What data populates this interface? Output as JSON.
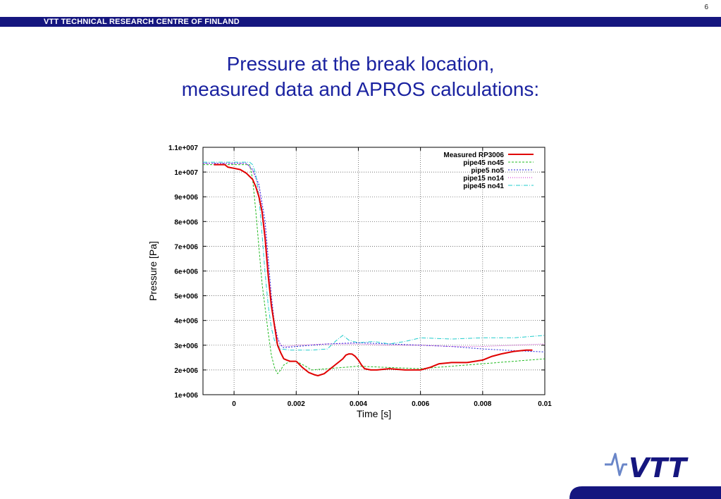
{
  "header": {
    "page_number": "6",
    "organization": "VTT TECHNICAL RESEARCH CENTRE OF FINLAND"
  },
  "slide": {
    "title_line1": "Pressure at the break location,",
    "title_line2": "measured data and APROS calculations:"
  },
  "logo": {
    "text": "VTT"
  },
  "colors": {
    "brand_blue": "#15167f",
    "title_blue": "#1a22a0"
  },
  "chart_data": {
    "type": "line",
    "xlabel": "Time [s]",
    "ylabel": "Pressure [Pa]",
    "xlim": [
      -0.001,
      0.01
    ],
    "ylim": [
      1000000,
      11000000
    ],
    "grid": true,
    "legend_position": "top-right",
    "x_ticks": [
      0,
      0.002,
      0.004,
      0.006,
      0.008,
      0.01
    ],
    "x_tick_labels": [
      "0",
      "0.002",
      "0.004",
      "0.006",
      "0.008",
      "0.01"
    ],
    "y_ticks": [
      1000000,
      2000000,
      3000000,
      4000000,
      5000000,
      6000000,
      7000000,
      8000000,
      9000000,
      10000000,
      11000000
    ],
    "y_tick_labels": [
      "1e+006",
      "2e+006",
      "3e+006",
      "4e+006",
      "5e+006",
      "6e+006",
      "7e+006",
      "8e+006",
      "9e+006",
      "1e+007",
      "1.1e+007"
    ],
    "series": [
      {
        "name": "Measured RP3006",
        "color": "#e00000",
        "dash": "solid",
        "width": 2,
        "x": [
          -0.00065,
          -0.00063,
          -0.0003,
          -0.0002,
          0.0,
          0.0002,
          0.0004,
          0.0006,
          0.0007,
          0.0008,
          0.0009,
          0.001,
          0.0011,
          0.0012,
          0.0013,
          0.0014,
          0.0015,
          0.0016,
          0.0017,
          0.0018,
          0.002,
          0.0022,
          0.0024,
          0.0026,
          0.0027,
          0.0029,
          0.0031,
          0.0033,
          0.0035,
          0.0036,
          0.0037,
          0.0038,
          0.0039,
          0.004,
          0.0041,
          0.0042,
          0.0044,
          0.0046,
          0.005,
          0.0055,
          0.006,
          0.0063,
          0.0066,
          0.007,
          0.0075,
          0.008,
          0.0083,
          0.0086,
          0.009,
          0.0094,
          0.0096
        ],
        "y": [
          10300000,
          10300000,
          10300000,
          10200000,
          10150000,
          10100000,
          9950000,
          9700000,
          9400000,
          9000000,
          8400000,
          7300000,
          5800000,
          4600000,
          3800000,
          3000000,
          2700000,
          2450000,
          2400000,
          2350000,
          2350000,
          2100000,
          1900000,
          1800000,
          1770000,
          1850000,
          2050000,
          2250000,
          2450000,
          2600000,
          2650000,
          2640000,
          2550000,
          2400000,
          2200000,
          2050000,
          2000000,
          2000000,
          2050000,
          2000000,
          2000000,
          2100000,
          2250000,
          2300000,
          2300000,
          2400000,
          2550000,
          2650000,
          2750000,
          2800000,
          2800000
        ]
      },
      {
        "name": "pipe45 no45",
        "color": "#22bb22",
        "dash": "3,2",
        "width": 1,
        "x": [
          -0.001,
          0.0005,
          0.0006,
          0.0007,
          0.0009,
          0.0011,
          0.0012,
          0.0013,
          0.0014,
          0.0015,
          0.0016,
          0.0018,
          0.002,
          0.0023,
          0.0025,
          0.003,
          0.0035,
          0.004,
          0.005,
          0.006,
          0.007,
          0.008,
          0.009,
          0.01
        ],
        "y": [
          10300000,
          10300000,
          9700000,
          8400000,
          5500000,
          3500000,
          2600000,
          2100000,
          1850000,
          2000000,
          2200000,
          2350000,
          2350000,
          2150000,
          2000000,
          2050000,
          2100000,
          2150000,
          2100000,
          2050000,
          2150000,
          2250000,
          2350000,
          2450000
        ]
      },
      {
        "name": "pipe5 no5",
        "color": "#2222dd",
        "dash": "2,2",
        "width": 1,
        "x": [
          -0.001,
          0.0004,
          0.0006,
          0.0008,
          0.001,
          0.0011,
          0.0012,
          0.0013,
          0.0014,
          0.0015,
          0.0016,
          0.002,
          0.003,
          0.004,
          0.005,
          0.006,
          0.007,
          0.008,
          0.009,
          0.01
        ],
        "y": [
          10350000,
          10350000,
          10100000,
          9500000,
          8000000,
          6500000,
          5000000,
          3900000,
          3300000,
          3000000,
          2900000,
          2950000,
          3050000,
          3100000,
          3050000,
          3000000,
          2950000,
          2850000,
          2780000,
          2730000
        ]
      },
      {
        "name": "pipe15 no14",
        "color": "#cc22cc",
        "dash": "1,2",
        "width": 1,
        "x": [
          -0.001,
          0.0004,
          0.0006,
          0.0008,
          0.001,
          0.0011,
          0.0012,
          0.0013,
          0.0014,
          0.0015,
          0.0017,
          0.002,
          0.003,
          0.004,
          0.005,
          0.006,
          0.007,
          0.008,
          0.009,
          0.01
        ],
        "y": [
          10350000,
          10350000,
          10050000,
          9400000,
          7700000,
          6200000,
          4800000,
          3800000,
          3250000,
          3000000,
          2950000,
          3000000,
          3050000,
          3050000,
          3000000,
          3000000,
          2950000,
          2950000,
          3000000,
          3050000
        ]
      },
      {
        "name": "pipe45 no41",
        "color": "#22cccc",
        "dash": "6,2,1,2",
        "width": 1,
        "x": [
          -0.001,
          0.0005,
          0.0006,
          0.0007,
          0.0008,
          0.0009,
          0.001,
          0.0011,
          0.0012,
          0.0013,
          0.0015,
          0.0018,
          0.002,
          0.0025,
          0.003,
          0.0033,
          0.0035,
          0.0037,
          0.004,
          0.0045,
          0.005,
          0.0055,
          0.006,
          0.007,
          0.008,
          0.009,
          0.01
        ],
        "y": [
          10400000,
          10400000,
          10300000,
          9900000,
          9000000,
          7500000,
          5900000,
          4600000,
          3700000,
          3200000,
          2850000,
          2800000,
          2800000,
          2800000,
          2850000,
          3200000,
          3400000,
          3200000,
          3100000,
          3150000,
          3050000,
          3150000,
          3300000,
          3250000,
          3300000,
          3300000,
          3400000
        ]
      }
    ]
  }
}
